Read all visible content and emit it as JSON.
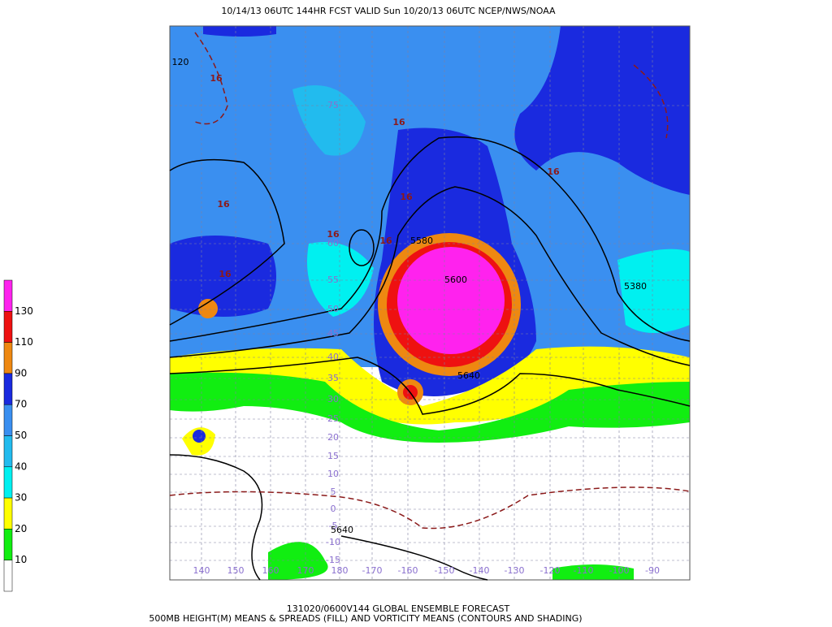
{
  "header": {
    "title": "10/14/13 06UTC   144HR  FCST VALID Sun 10/20/13 06UTC  NCEP/NWS/NOAA"
  },
  "footer": {
    "line1": "131020/0600V144 GLOBAL ENSEMBLE FORECAST",
    "line2": "500MB HEIGHT(M) MEANS & SPREADS (FILL) AND VORTICITY MEANS (CONTOURS AND SHADING)"
  },
  "colorbar": {
    "levels": [
      130,
      110,
      90,
      70,
      50,
      40,
      30,
      20,
      10
    ],
    "colors": [
      "#ff22ee",
      "#ee1111",
      "#ee8811",
      "#1a2adf",
      "#3a8ff0",
      "#22bbee",
      "#00f0f0",
      "#ffff00",
      "#11ee11",
      "#ffffff"
    ]
  },
  "lat_labels": [
    75,
    60,
    55,
    50,
    45,
    40,
    35,
    30,
    25,
    20,
    15,
    10,
    5,
    0,
    -5,
    -10,
    -15
  ],
  "lon_labels": [
    140,
    150,
    160,
    170,
    180,
    -170,
    -160,
    -150,
    -140,
    -130,
    -120,
    -110,
    -100,
    -90
  ],
  "contour_labels": [
    "5580",
    "5600",
    "5380",
    "5640",
    "5640",
    "120"
  ],
  "vorticity_labels": [
    "16",
    "16",
    "16",
    "16",
    "16",
    "16",
    "16",
    "16"
  ]
}
